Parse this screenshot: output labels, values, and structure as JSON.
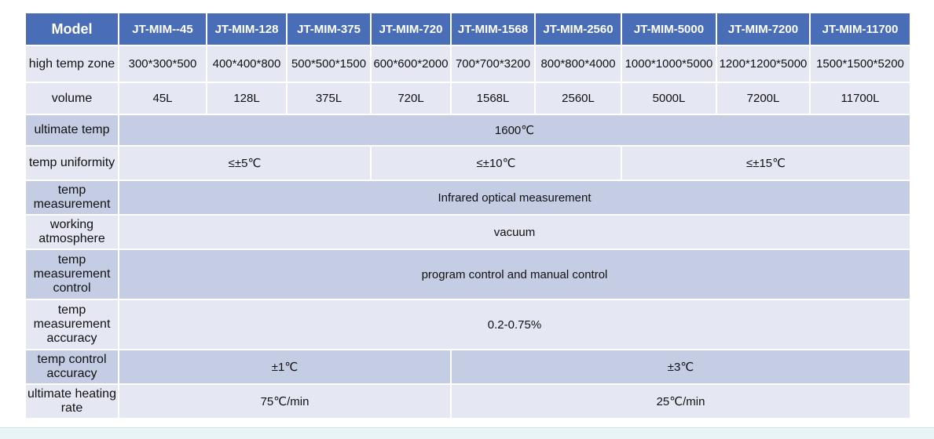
{
  "header": {
    "model_label": "Model",
    "models": [
      "JT-MIM--45",
      "JT-MIM-128",
      "JT-MIM-375",
      "JT-MIM-720",
      "JT-MIM-1568",
      "JT-MIM-2560",
      "JT-MIM-5000",
      "JT-MIM-7200",
      "JT-MIM-11700"
    ]
  },
  "rows": {
    "zone": {
      "label": "high temp zone",
      "values": [
        "300*300*500",
        "400*400*800",
        "500*500*1500",
        "600*600*2000",
        "700*700*3200",
        "800*800*4000",
        "1000*1000*5000",
        "1200*1200*5000",
        "1500*1500*5200"
      ]
    },
    "volume": {
      "label": "volume",
      "values": [
        "45L",
        "128L",
        "375L",
        "720L",
        "1568L",
        "2560L",
        "5000L",
        "7200L",
        "11700L"
      ]
    },
    "ultimate_temp": {
      "label": "ultimate temp",
      "value": "1600℃"
    },
    "uniformity": {
      "label": "temp uniformity",
      "values": [
        "≤±5℃",
        "≤±10℃",
        "≤±15℃"
      ]
    },
    "measurement": {
      "label": "temp measurement",
      "value": "Infrared optical measurement"
    },
    "atmosphere": {
      "label": "working atmosphere",
      "value": "vacuum"
    },
    "measurement_control": {
      "label": "temp measurement control",
      "value": "program control and manual control"
    },
    "measurement_accuracy": {
      "label": "temp measurement accuracy",
      "value": "0.2-0.75%"
    },
    "control_accuracy": {
      "label": "temp control accuracy",
      "values": [
        "±1℃",
        "±3℃"
      ]
    },
    "heating_rate": {
      "label": "ultimate heating rate",
      "values": [
        "75℃/min",
        "25℃/min"
      ]
    }
  }
}
